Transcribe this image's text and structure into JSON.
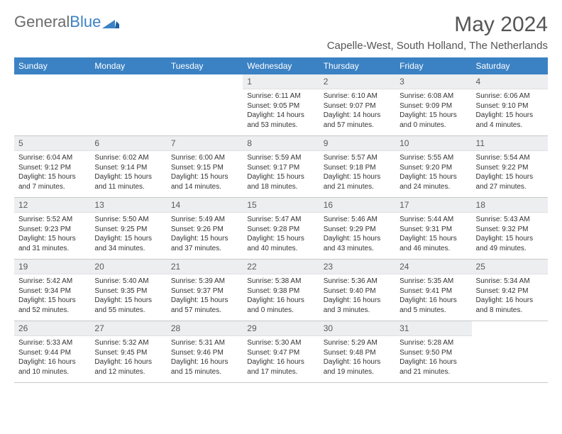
{
  "logo": {
    "text1": "General",
    "text2": "Blue"
  },
  "title": "May 2024",
  "location": "Capelle-West, South Holland, The Netherlands",
  "colors": {
    "header_bg": "#3b82c4",
    "daynum_bg": "#eceef0",
    "text": "#333333",
    "logo_gray": "#6b6b6b",
    "logo_blue": "#3b82c4"
  },
  "weekdays": [
    "Sunday",
    "Monday",
    "Tuesday",
    "Wednesday",
    "Thursday",
    "Friday",
    "Saturday"
  ],
  "weeks": [
    [
      {
        "n": "",
        "sr": "",
        "ss": "",
        "dl": ""
      },
      {
        "n": "",
        "sr": "",
        "ss": "",
        "dl": ""
      },
      {
        "n": "",
        "sr": "",
        "ss": "",
        "dl": ""
      },
      {
        "n": "1",
        "sr": "Sunrise: 6:11 AM",
        "ss": "Sunset: 9:05 PM",
        "dl": "Daylight: 14 hours and 53 minutes."
      },
      {
        "n": "2",
        "sr": "Sunrise: 6:10 AM",
        "ss": "Sunset: 9:07 PM",
        "dl": "Daylight: 14 hours and 57 minutes."
      },
      {
        "n": "3",
        "sr": "Sunrise: 6:08 AM",
        "ss": "Sunset: 9:09 PM",
        "dl": "Daylight: 15 hours and 0 minutes."
      },
      {
        "n": "4",
        "sr": "Sunrise: 6:06 AM",
        "ss": "Sunset: 9:10 PM",
        "dl": "Daylight: 15 hours and 4 minutes."
      }
    ],
    [
      {
        "n": "5",
        "sr": "Sunrise: 6:04 AM",
        "ss": "Sunset: 9:12 PM",
        "dl": "Daylight: 15 hours and 7 minutes."
      },
      {
        "n": "6",
        "sr": "Sunrise: 6:02 AM",
        "ss": "Sunset: 9:14 PM",
        "dl": "Daylight: 15 hours and 11 minutes."
      },
      {
        "n": "7",
        "sr": "Sunrise: 6:00 AM",
        "ss": "Sunset: 9:15 PM",
        "dl": "Daylight: 15 hours and 14 minutes."
      },
      {
        "n": "8",
        "sr": "Sunrise: 5:59 AM",
        "ss": "Sunset: 9:17 PM",
        "dl": "Daylight: 15 hours and 18 minutes."
      },
      {
        "n": "9",
        "sr": "Sunrise: 5:57 AM",
        "ss": "Sunset: 9:18 PM",
        "dl": "Daylight: 15 hours and 21 minutes."
      },
      {
        "n": "10",
        "sr": "Sunrise: 5:55 AM",
        "ss": "Sunset: 9:20 PM",
        "dl": "Daylight: 15 hours and 24 minutes."
      },
      {
        "n": "11",
        "sr": "Sunrise: 5:54 AM",
        "ss": "Sunset: 9:22 PM",
        "dl": "Daylight: 15 hours and 27 minutes."
      }
    ],
    [
      {
        "n": "12",
        "sr": "Sunrise: 5:52 AM",
        "ss": "Sunset: 9:23 PM",
        "dl": "Daylight: 15 hours and 31 minutes."
      },
      {
        "n": "13",
        "sr": "Sunrise: 5:50 AM",
        "ss": "Sunset: 9:25 PM",
        "dl": "Daylight: 15 hours and 34 minutes."
      },
      {
        "n": "14",
        "sr": "Sunrise: 5:49 AM",
        "ss": "Sunset: 9:26 PM",
        "dl": "Daylight: 15 hours and 37 minutes."
      },
      {
        "n": "15",
        "sr": "Sunrise: 5:47 AM",
        "ss": "Sunset: 9:28 PM",
        "dl": "Daylight: 15 hours and 40 minutes."
      },
      {
        "n": "16",
        "sr": "Sunrise: 5:46 AM",
        "ss": "Sunset: 9:29 PM",
        "dl": "Daylight: 15 hours and 43 minutes."
      },
      {
        "n": "17",
        "sr": "Sunrise: 5:44 AM",
        "ss": "Sunset: 9:31 PM",
        "dl": "Daylight: 15 hours and 46 minutes."
      },
      {
        "n": "18",
        "sr": "Sunrise: 5:43 AM",
        "ss": "Sunset: 9:32 PM",
        "dl": "Daylight: 15 hours and 49 minutes."
      }
    ],
    [
      {
        "n": "19",
        "sr": "Sunrise: 5:42 AM",
        "ss": "Sunset: 9:34 PM",
        "dl": "Daylight: 15 hours and 52 minutes."
      },
      {
        "n": "20",
        "sr": "Sunrise: 5:40 AM",
        "ss": "Sunset: 9:35 PM",
        "dl": "Daylight: 15 hours and 55 minutes."
      },
      {
        "n": "21",
        "sr": "Sunrise: 5:39 AM",
        "ss": "Sunset: 9:37 PM",
        "dl": "Daylight: 15 hours and 57 minutes."
      },
      {
        "n": "22",
        "sr": "Sunrise: 5:38 AM",
        "ss": "Sunset: 9:38 PM",
        "dl": "Daylight: 16 hours and 0 minutes."
      },
      {
        "n": "23",
        "sr": "Sunrise: 5:36 AM",
        "ss": "Sunset: 9:40 PM",
        "dl": "Daylight: 16 hours and 3 minutes."
      },
      {
        "n": "24",
        "sr": "Sunrise: 5:35 AM",
        "ss": "Sunset: 9:41 PM",
        "dl": "Daylight: 16 hours and 5 minutes."
      },
      {
        "n": "25",
        "sr": "Sunrise: 5:34 AM",
        "ss": "Sunset: 9:42 PM",
        "dl": "Daylight: 16 hours and 8 minutes."
      }
    ],
    [
      {
        "n": "26",
        "sr": "Sunrise: 5:33 AM",
        "ss": "Sunset: 9:44 PM",
        "dl": "Daylight: 16 hours and 10 minutes."
      },
      {
        "n": "27",
        "sr": "Sunrise: 5:32 AM",
        "ss": "Sunset: 9:45 PM",
        "dl": "Daylight: 16 hours and 12 minutes."
      },
      {
        "n": "28",
        "sr": "Sunrise: 5:31 AM",
        "ss": "Sunset: 9:46 PM",
        "dl": "Daylight: 16 hours and 15 minutes."
      },
      {
        "n": "29",
        "sr": "Sunrise: 5:30 AM",
        "ss": "Sunset: 9:47 PM",
        "dl": "Daylight: 16 hours and 17 minutes."
      },
      {
        "n": "30",
        "sr": "Sunrise: 5:29 AM",
        "ss": "Sunset: 9:48 PM",
        "dl": "Daylight: 16 hours and 19 minutes."
      },
      {
        "n": "31",
        "sr": "Sunrise: 5:28 AM",
        "ss": "Sunset: 9:50 PM",
        "dl": "Daylight: 16 hours and 21 minutes."
      },
      {
        "n": "",
        "sr": "",
        "ss": "",
        "dl": ""
      }
    ]
  ]
}
